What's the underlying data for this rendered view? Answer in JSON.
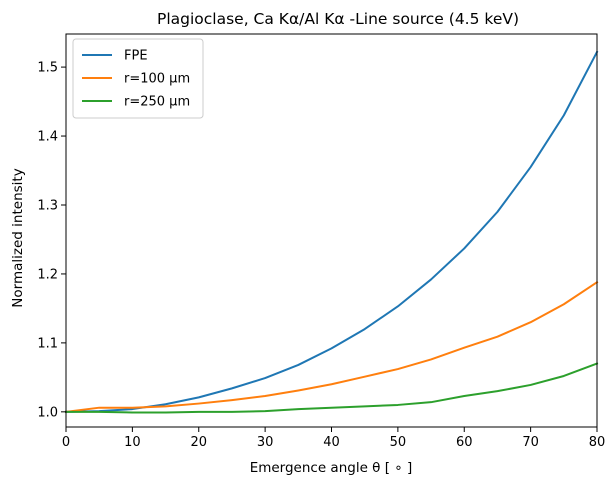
{
  "chart_data": {
    "type": "line",
    "title": "Plagioclase, Ca Kα/Al Kα -Line source (4.5 keV)",
    "xlabel": "Emergence angle θ [ ∘ ]",
    "ylabel": "Normalized intensity",
    "xlim": [
      0,
      80
    ],
    "ylim": [
      0.978,
      1.548
    ],
    "x_ticks": [
      0,
      10,
      20,
      30,
      40,
      50,
      60,
      70,
      80
    ],
    "y_ticks": [
      1.0,
      1.1,
      1.2,
      1.3,
      1.4,
      1.5
    ],
    "grid": false,
    "legend_position": "top-left",
    "x": [
      0,
      5,
      10,
      15,
      20,
      25,
      30,
      35,
      40,
      45,
      50,
      55,
      60,
      65,
      70,
      75,
      80
    ],
    "series": [
      {
        "name": "FPE",
        "color": "#1f77b4",
        "values": [
          1.0,
          1.001,
          1.004,
          1.011,
          1.021,
          1.034,
          1.049,
          1.068,
          1.092,
          1.12,
          1.153,
          1.192,
          1.237,
          1.29,
          1.355,
          1.43,
          1.522
        ]
      },
      {
        "name": "r=100 µm",
        "color": "#ff7f0e",
        "values": [
          1.0,
          1.006,
          1.006,
          1.008,
          1.012,
          1.017,
          1.023,
          1.031,
          1.04,
          1.051,
          1.062,
          1.076,
          1.093,
          1.109,
          1.13,
          1.156,
          1.188
        ]
      },
      {
        "name": "r=250 µm",
        "color": "#2ca02c",
        "values": [
          1.0,
          1.0,
          0.999,
          0.999,
          1.0,
          1.0,
          1.001,
          1.004,
          1.006,
          1.008,
          1.01,
          1.014,
          1.023,
          1.03,
          1.039,
          1.052,
          1.07
        ]
      }
    ]
  }
}
